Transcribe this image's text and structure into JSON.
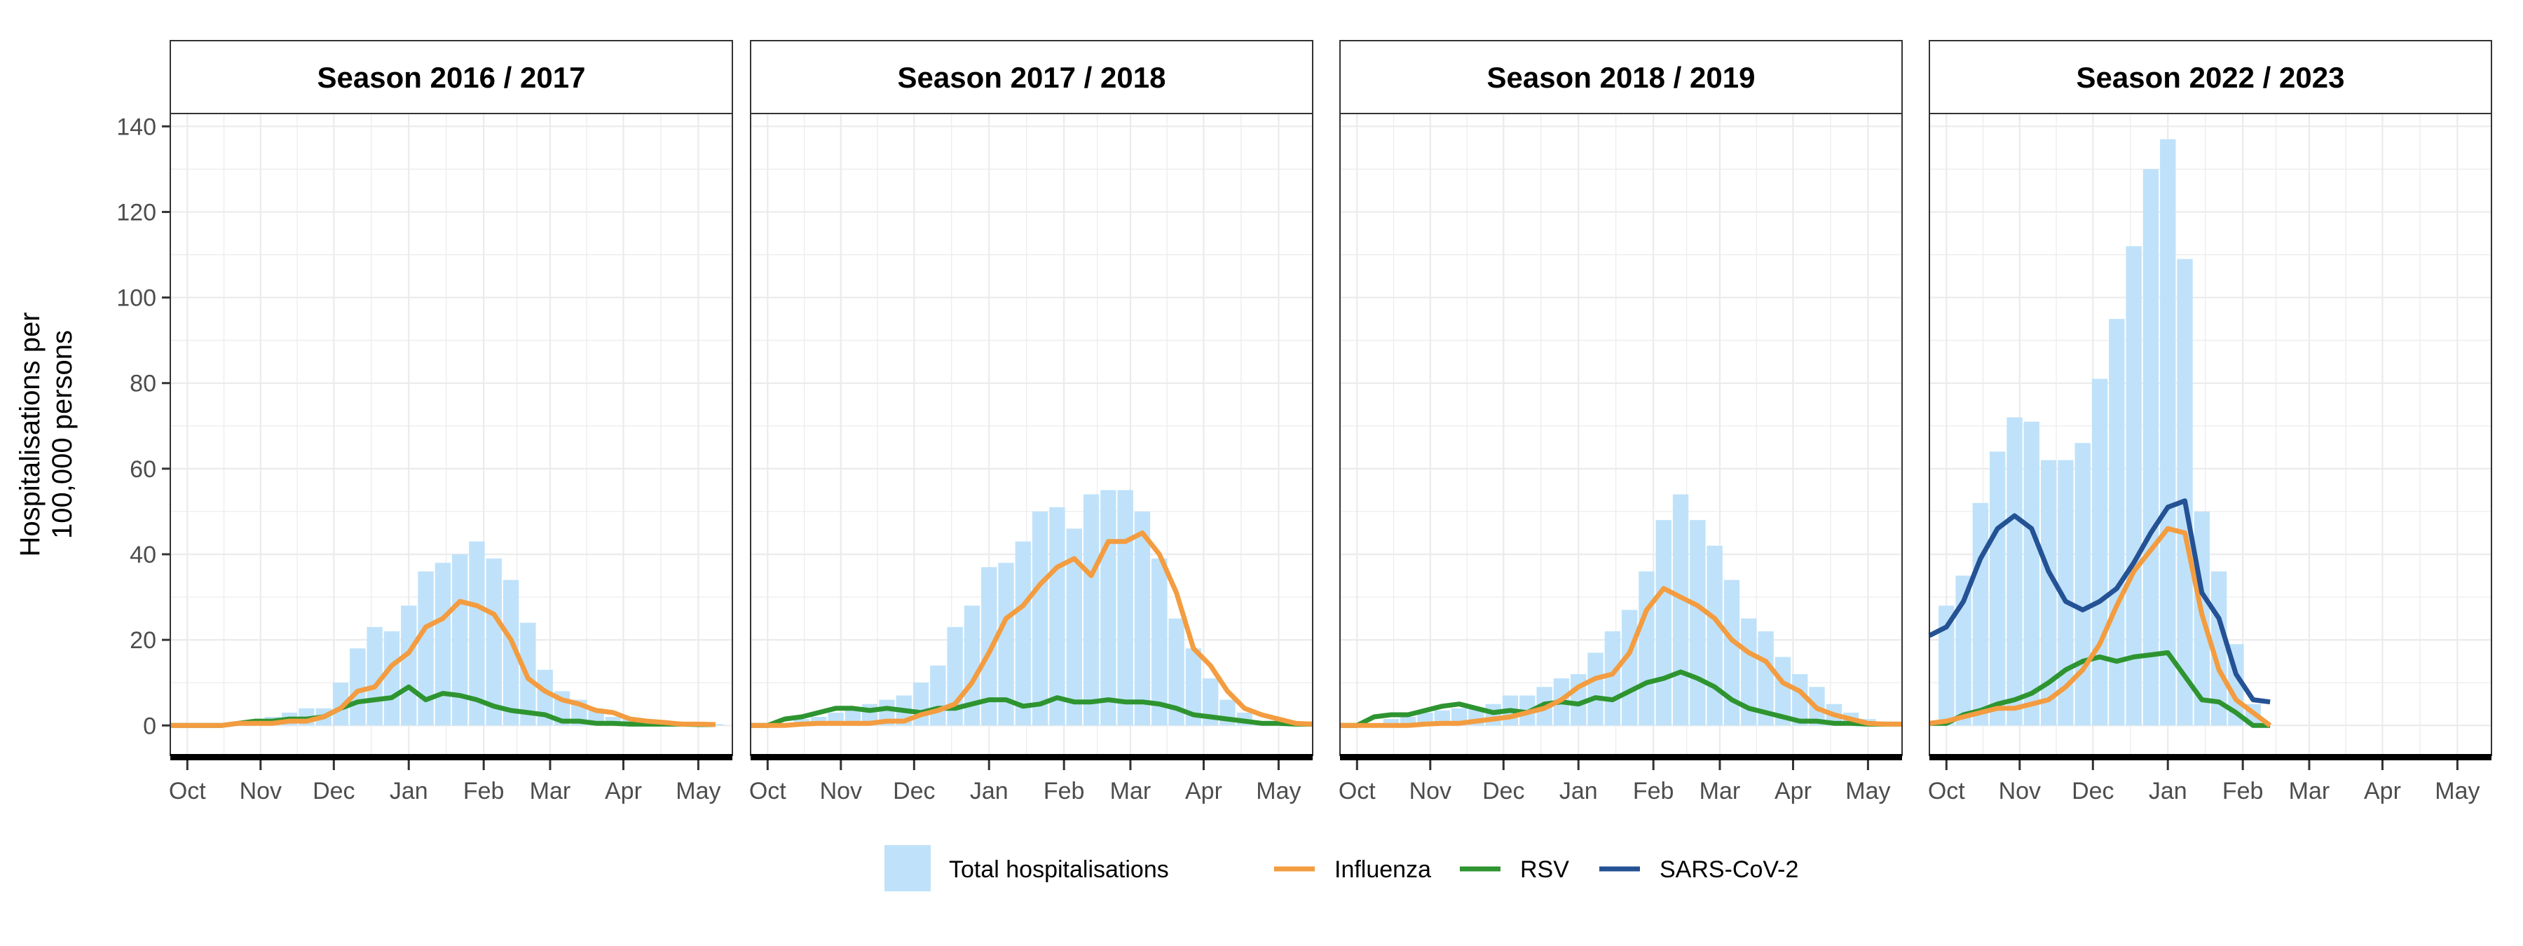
{
  "chart_data": {
    "type": "bar",
    "ylabel_lines": [
      "Hospitalisations per",
      "100,000 persons"
    ],
    "ylim": [
      -7,
      143
    ],
    "yticks": [
      0,
      20,
      40,
      60,
      80,
      100,
      120,
      140
    ],
    "grid": true,
    "legend_position": "bottom",
    "legend": {
      "bar_label": "Total hospitalisations",
      "line_labels": [
        "Influenza",
        "RSV",
        "SARS-CoV-2"
      ]
    },
    "colors": {
      "bar": "#bfe2fa",
      "influenza": "#f39c40",
      "rsv": "#2e9430",
      "sars": "#245294",
      "grid": "#ebebeb",
      "strip_bg": "#ffffff",
      "panel_border": "#333333"
    },
    "month_labels": [
      "Oct",
      "Nov",
      "Dec",
      "Jan",
      "Feb",
      "Mar",
      "Apr",
      "May"
    ],
    "month_week_positions": [
      0,
      4.3,
      8.6,
      13,
      17.4,
      21.3,
      25.6,
      30
    ],
    "xlim_weeks": [
      -1,
      32
    ],
    "panels": [
      {
        "title": "Season 2016 / 2017",
        "total": [
          0.3,
          0.3,
          0.3,
          0.5,
          1,
          2,
          3,
          4,
          4,
          10,
          18,
          23,
          22,
          28,
          36,
          38,
          40,
          43,
          39,
          34,
          24,
          13,
          8,
          6,
          4,
          2,
          1.5,
          1,
          0.8,
          0.5,
          0.3,
          0.3
        ],
        "influenza": [
          0,
          0,
          0,
          0,
          0.5,
          0.5,
          0.5,
          1,
          1,
          2,
          4,
          8,
          9,
          14,
          17,
          23,
          25,
          29,
          28,
          26,
          20,
          11,
          8,
          6,
          5,
          3.5,
          3,
          1.5,
          1,
          0.7,
          0.3,
          0.3,
          0.2
        ],
        "rsv": [
          0,
          0,
          0,
          0,
          0.5,
          1,
          1,
          1.5,
          1.5,
          2,
          4,
          5.5,
          6,
          6.5,
          9,
          6,
          7.5,
          7,
          6,
          4.5,
          3.5,
          3,
          2.5,
          1,
          1,
          0.5,
          0.5,
          0.3,
          0.3,
          0.3,
          0.3,
          0.2,
          0.2
        ],
        "sars": null
      },
      {
        "title": "Season 2017 / 2018",
        "total": [
          0.3,
          0.5,
          1.5,
          2,
          3,
          4,
          5,
          6,
          7,
          10,
          14,
          23,
          28,
          37,
          38,
          43,
          50,
          51,
          46,
          54,
          55,
          55,
          50,
          39,
          25,
          18,
          11,
          6,
          3,
          1,
          0.5,
          0.3
        ],
        "influenza": [
          0,
          0,
          0,
          0.3,
          0.5,
          0.5,
          0.5,
          0.5,
          1,
          1,
          2.5,
          3.5,
          5,
          10,
          17,
          25,
          28,
          33,
          37,
          39,
          35,
          43,
          43,
          45,
          40,
          31,
          18,
          14,
          8,
          4,
          2.5,
          1.5,
          0.5,
          0.3
        ],
        "rsv": [
          0,
          0,
          1.5,
          2,
          3,
          4,
          4,
          3.5,
          4,
          3.5,
          3,
          4,
          4,
          5,
          6,
          6,
          4.5,
          5,
          6.5,
          5.5,
          5.5,
          6,
          5.5,
          5.5,
          5,
          4,
          2.5,
          2,
          1.5,
          1,
          0.5,
          0.5,
          0.3,
          0.3
        ],
        "sars": null
      },
      {
        "title": "Season 2018 / 2019",
        "total": [
          0.3,
          0.5,
          1.5,
          2,
          3,
          3.5,
          4,
          4,
          5,
          7,
          7,
          9,
          11,
          12,
          17,
          22,
          27,
          36,
          48,
          54,
          48,
          42,
          34,
          25,
          22,
          16,
          12,
          9,
          5,
          3,
          1.5,
          0.5
        ],
        "influenza": [
          0,
          0,
          0,
          0,
          0,
          0.3,
          0.5,
          0.5,
          1,
          1.5,
          2,
          3,
          4,
          6,
          9,
          11,
          12,
          17,
          27,
          32,
          30,
          28,
          25,
          20,
          17,
          15,
          10,
          8,
          4,
          2.5,
          1.5,
          0.5,
          0.3,
          0.3
        ],
        "rsv": [
          0,
          0,
          2,
          2.5,
          2.5,
          3.5,
          4.5,
          5,
          4,
          3,
          3.5,
          3,
          5,
          5.5,
          5,
          6.5,
          6,
          8,
          10,
          11,
          12.5,
          11,
          9,
          6,
          4,
          3,
          2,
          1,
          1,
          0.5,
          0.5,
          0.3,
          0.3,
          0.3
        ],
        "sars": null
      },
      {
        "title": "Season 2022 / 2023",
        "total": [
          28,
          35,
          52,
          64,
          72,
          71,
          62,
          62,
          66,
          81,
          95,
          112,
          130,
          137,
          109,
          50,
          36,
          19,
          5
        ],
        "influenza": [
          0.5,
          1,
          2,
          3,
          4,
          4,
          5,
          6,
          9,
          13,
          19,
          28,
          36,
          41,
          46,
          45,
          26,
          13,
          6,
          3,
          0
        ],
        "rsv": [
          0.5,
          0.5,
          2.5,
          3.5,
          5,
          6,
          7.5,
          10,
          13,
          15,
          16,
          15,
          16,
          16.5,
          17,
          11.5,
          6,
          5.5,
          3,
          0,
          0
        ],
        "sars": [
          21,
          23,
          29,
          39,
          46,
          49,
          46,
          36,
          29,
          27,
          29,
          32,
          38,
          45,
          51,
          52.5,
          31,
          25,
          12,
          6,
          5.5
        ],
        "line_start_week": -1
      }
    ]
  }
}
